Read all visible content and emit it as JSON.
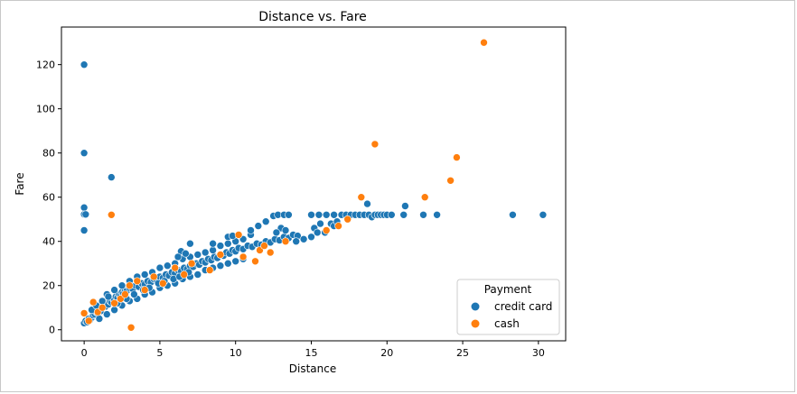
{
  "chart_data": {
    "type": "scatter",
    "title": "Distance vs. Fare",
    "xlabel": "Distance",
    "ylabel": "Fare",
    "xlim": [
      -1.5,
      31.8
    ],
    "ylim": [
      -5,
      137
    ],
    "xticks": [
      0,
      5,
      10,
      15,
      20,
      25,
      30
    ],
    "yticks": [
      0,
      20,
      40,
      60,
      80,
      100,
      120
    ],
    "grid": false,
    "legend": {
      "title": "Payment",
      "placement": "lower-right"
    },
    "series": [
      {
        "name": "credit card",
        "color": "#1f77b4",
        "points": [
          [
            0.0,
            120
          ],
          [
            0.0,
            80
          ],
          [
            0.0,
            55.3
          ],
          [
            0.0,
            52.2
          ],
          [
            0.1,
            52.2
          ],
          [
            0.0,
            45
          ],
          [
            1.8,
            69
          ],
          [
            0.0,
            3
          ],
          [
            0.1,
            4
          ],
          [
            0.2,
            3.5
          ],
          [
            0.3,
            5
          ],
          [
            0.4,
            4.5
          ],
          [
            0.5,
            5.5
          ],
          [
            0.6,
            6.5
          ],
          [
            0.7,
            7
          ],
          [
            0.8,
            8
          ],
          [
            0.9,
            7.5
          ],
          [
            1.0,
            9
          ],
          [
            1.1,
            8.5
          ],
          [
            1.2,
            10
          ],
          [
            1.3,
            11
          ],
          [
            1.4,
            10.5
          ],
          [
            1.5,
            12
          ],
          [
            1.6,
            11.5
          ],
          [
            1.7,
            13
          ],
          [
            1.8,
            12.5
          ],
          [
            1.9,
            14
          ],
          [
            2.0,
            13.5
          ],
          [
            2.1,
            15
          ],
          [
            2.2,
            14.5
          ],
          [
            2.3,
            16
          ],
          [
            2.4,
            15.5
          ],
          [
            2.5,
            17
          ],
          [
            2.6,
            16.5
          ],
          [
            2.7,
            18
          ],
          [
            2.8,
            17.5
          ],
          [
            3.0,
            19
          ],
          [
            3.2,
            18.5
          ],
          [
            3.4,
            20
          ],
          [
            3.6,
            19.5
          ],
          [
            3.8,
            21
          ],
          [
            4.0,
            20.5
          ],
          [
            4.2,
            22
          ],
          [
            4.4,
            21.5
          ],
          [
            4.6,
            23
          ],
          [
            4.8,
            22.5
          ],
          [
            5.0,
            24
          ],
          [
            5.2,
            23.5
          ],
          [
            5.4,
            25
          ],
          [
            5.6,
            24.5
          ],
          [
            5.8,
            26
          ],
          [
            6.0,
            25.5
          ],
          [
            6.2,
            27
          ],
          [
            6.4,
            26.5
          ],
          [
            6.6,
            28
          ],
          [
            6.8,
            27.5
          ],
          [
            7.0,
            29
          ],
          [
            7.2,
            28.5
          ],
          [
            7.4,
            30
          ],
          [
            7.6,
            29.5
          ],
          [
            7.8,
            31
          ],
          [
            8.0,
            30.5
          ],
          [
            8.2,
            32
          ],
          [
            8.4,
            31.5
          ],
          [
            8.6,
            33
          ],
          [
            8.8,
            32.5
          ],
          [
            9.0,
            34
          ],
          [
            9.2,
            33.5
          ],
          [
            9.4,
            35
          ],
          [
            9.6,
            34.5
          ],
          [
            9.8,
            36
          ],
          [
            10.0,
            35.5
          ],
          [
            10.2,
            37
          ],
          [
            10.5,
            36.5
          ],
          [
            10.8,
            38
          ],
          [
            11.1,
            37.5
          ],
          [
            11.4,
            39
          ],
          [
            11.7,
            38.5
          ],
          [
            12.0,
            40
          ],
          [
            12.3,
            39.5
          ],
          [
            12.6,
            41
          ],
          [
            12.9,
            40.5
          ],
          [
            13.2,
            42
          ],
          [
            13.5,
            41.5
          ],
          [
            13.8,
            43
          ],
          [
            14.1,
            42.5
          ],
          [
            1.5,
            16
          ],
          [
            2.0,
            18
          ],
          [
            2.5,
            20
          ],
          [
            3.0,
            22
          ],
          [
            3.5,
            24
          ],
          [
            4.0,
            25
          ],
          [
            4.5,
            26
          ],
          [
            5.0,
            28
          ],
          [
            5.5,
            29
          ],
          [
            6.0,
            30
          ],
          [
            6.5,
            32
          ],
          [
            7.0,
            33
          ],
          [
            7.5,
            34
          ],
          [
            8.0,
            35
          ],
          [
            8.5,
            36
          ],
          [
            9.0,
            38
          ],
          [
            9.5,
            39
          ],
          [
            10.0,
            40
          ],
          [
            10.5,
            41
          ],
          [
            11.0,
            43
          ],
          [
            1.0,
            5
          ],
          [
            1.5,
            7
          ],
          [
            2.0,
            9
          ],
          [
            2.5,
            11
          ],
          [
            3.0,
            13
          ],
          [
            3.5,
            14
          ],
          [
            4.0,
            16
          ],
          [
            4.5,
            17
          ],
          [
            5.0,
            19
          ],
          [
            5.5,
            20
          ],
          [
            6.0,
            21
          ],
          [
            6.5,
            23
          ],
          [
            7.0,
            24
          ],
          [
            7.5,
            25
          ],
          [
            8.0,
            27
          ],
          [
            8.5,
            28
          ],
          [
            9.0,
            29
          ],
          [
            9.5,
            30
          ],
          [
            10.0,
            31
          ],
          [
            10.5,
            32
          ],
          [
            0.5,
            9
          ],
          [
            0.8,
            11
          ],
          [
            1.2,
            13
          ],
          [
            1.6,
            15
          ],
          [
            2.2,
            12
          ],
          [
            2.8,
            14
          ],
          [
            3.3,
            16
          ],
          [
            3.9,
            18
          ],
          [
            4.3,
            19
          ],
          [
            4.9,
            21
          ],
          [
            5.3,
            22
          ],
          [
            5.9,
            23
          ],
          [
            6.3,
            24
          ],
          [
            6.9,
            26
          ],
          [
            6.4,
            35.5
          ],
          [
            6.7,
            34.5
          ],
          [
            6.2,
            33
          ],
          [
            7.0,
            39
          ],
          [
            8.5,
            39
          ],
          [
            9.0,
            38
          ],
          [
            9.5,
            42
          ],
          [
            9.8,
            42.5
          ],
          [
            11.0,
            45
          ],
          [
            11.5,
            47
          ],
          [
            12.0,
            49
          ],
          [
            12.5,
            51.5
          ],
          [
            12.8,
            52
          ],
          [
            13.2,
            52
          ],
          [
            13.5,
            52
          ],
          [
            13.0,
            46
          ],
          [
            13.3,
            45
          ],
          [
            12.7,
            44
          ],
          [
            14.0,
            40
          ],
          [
            14.5,
            41
          ],
          [
            15.0,
            42
          ],
          [
            15.2,
            46
          ],
          [
            15.4,
            44
          ],
          [
            15.6,
            48
          ],
          [
            15.9,
            44
          ],
          [
            16.3,
            48
          ],
          [
            16.5,
            47
          ],
          [
            16.7,
            49
          ],
          [
            15.0,
            52
          ],
          [
            15.5,
            52
          ],
          [
            16.0,
            52
          ],
          [
            16.5,
            52
          ],
          [
            17.0,
            52
          ],
          [
            17.3,
            52
          ],
          [
            17.6,
            52
          ],
          [
            17.9,
            52
          ],
          [
            18.2,
            52
          ],
          [
            18.5,
            52
          ],
          [
            18.7,
            57
          ],
          [
            18.8,
            52
          ],
          [
            19.0,
            51
          ],
          [
            19.2,
            52
          ],
          [
            19.4,
            52
          ],
          [
            19.6,
            52
          ],
          [
            19.8,
            52
          ],
          [
            20.0,
            52
          ],
          [
            20.3,
            52
          ],
          [
            21.1,
            52
          ],
          [
            21.2,
            56
          ],
          [
            22.4,
            52
          ],
          [
            23.3,
            52
          ],
          [
            28.3,
            52
          ],
          [
            30.3,
            52
          ]
        ]
      },
      {
        "name": "cash",
        "color": "#ff7f0e",
        "points": [
          [
            0.0,
            7.5
          ],
          [
            0.3,
            4
          ],
          [
            0.6,
            12.5
          ],
          [
            0.9,
            8
          ],
          [
            1.2,
            10
          ],
          [
            1.8,
            52
          ],
          [
            2.0,
            12
          ],
          [
            2.4,
            14
          ],
          [
            2.7,
            16
          ],
          [
            3.0,
            20
          ],
          [
            3.1,
            1
          ],
          [
            3.5,
            22
          ],
          [
            4.0,
            18
          ],
          [
            4.6,
            24
          ],
          [
            5.2,
            21
          ],
          [
            6.0,
            28
          ],
          [
            6.6,
            25
          ],
          [
            7.1,
            30
          ],
          [
            8.3,
            27
          ],
          [
            9.0,
            34
          ],
          [
            10.2,
            43
          ],
          [
            10.5,
            33
          ],
          [
            11.3,
            31
          ],
          [
            11.6,
            36
          ],
          [
            11.9,
            38
          ],
          [
            12.3,
            35
          ],
          [
            13.3,
            40
          ],
          [
            16.0,
            45
          ],
          [
            16.8,
            47
          ],
          [
            17.4,
            50
          ],
          [
            18.3,
            60
          ],
          [
            19.2,
            84
          ],
          [
            22.5,
            60
          ],
          [
            24.2,
            67.5
          ],
          [
            24.6,
            78
          ],
          [
            26.4,
            130
          ]
        ]
      }
    ]
  }
}
